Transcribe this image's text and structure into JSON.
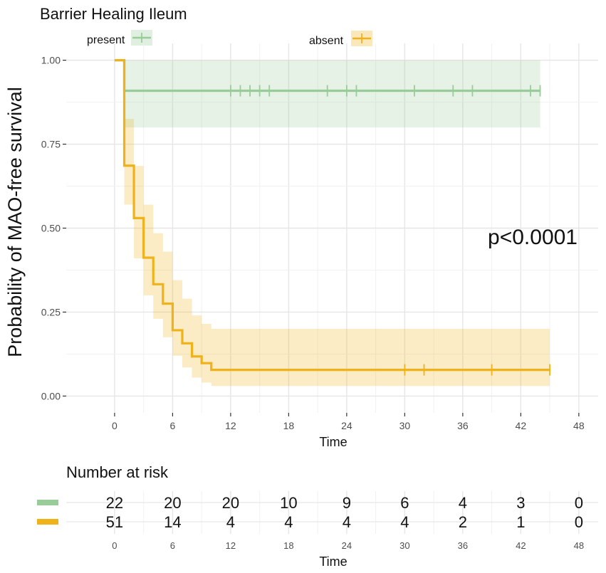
{
  "chart_data": {
    "type": "line",
    "title": "Barrier Healing Ileum",
    "xlabel": "Time",
    "ylabel": "Probability of MAO-free survival",
    "xlim": [
      -5,
      50
    ],
    "ylim": [
      -0.05,
      1.05
    ],
    "xticks": [
      0,
      6,
      12,
      18,
      24,
      30,
      36,
      42,
      48
    ],
    "yticks": [
      0.0,
      0.25,
      0.5,
      0.75,
      1.0
    ],
    "ytick_labels": [
      "0.00",
      "0.25",
      "0.50",
      "0.75",
      "1.00"
    ],
    "grid": true,
    "legend_position": "top",
    "annotation": "p<0.0001",
    "series": [
      {
        "name": "present",
        "color": "#99cc99",
        "steps": [
          [
            0,
            1.0
          ],
          [
            1,
            0.909
          ],
          [
            44,
            0.909
          ]
        ],
        "ci": [
          [
            0,
            1.0,
            1.0
          ],
          [
            1,
            0.8,
            1.0
          ],
          [
            44,
            0.8,
            1.0
          ]
        ],
        "censor_times": [
          12,
          13,
          14,
          15,
          16,
          22,
          24,
          25,
          31,
          35,
          37,
          43,
          44
        ]
      },
      {
        "name": "absent",
        "color": "#efb21a",
        "steps": [
          [
            0,
            1.0
          ],
          [
            1,
            0.686
          ],
          [
            2,
            0.53
          ],
          [
            3,
            0.412
          ],
          [
            4,
            0.333
          ],
          [
            5,
            0.275
          ],
          [
            6,
            0.196
          ],
          [
            7,
            0.157
          ],
          [
            8,
            0.118
          ],
          [
            9,
            0.098
          ],
          [
            10,
            0.078
          ],
          [
            45,
            0.078
          ]
        ],
        "ci": [
          [
            0,
            1.0,
            1.0
          ],
          [
            1,
            0.57,
            0.825
          ],
          [
            2,
            0.41,
            0.685
          ],
          [
            3,
            0.3,
            0.57
          ],
          [
            4,
            0.23,
            0.485
          ],
          [
            5,
            0.175,
            0.43
          ],
          [
            6,
            0.12,
            0.345
          ],
          [
            7,
            0.085,
            0.29
          ],
          [
            8,
            0.055,
            0.24
          ],
          [
            9,
            0.04,
            0.215
          ],
          [
            10,
            0.03,
            0.2
          ],
          [
            45,
            0.03,
            0.2
          ]
        ],
        "censor_times": [
          30,
          32,
          39,
          45
        ]
      }
    ]
  },
  "risk_table": {
    "title": "Number at risk",
    "xlabel": "Time",
    "times": [
      0,
      6,
      12,
      18,
      24,
      30,
      36,
      42,
      48
    ],
    "rows": [
      {
        "name": "present",
        "color": "#99cc99",
        "counts": [
          22,
          20,
          20,
          10,
          9,
          6,
          4,
          3,
          0
        ]
      },
      {
        "name": "absent",
        "color": "#efb21a",
        "counts": [
          51,
          14,
          4,
          4,
          4,
          4,
          2,
          1,
          0
        ]
      }
    ]
  }
}
